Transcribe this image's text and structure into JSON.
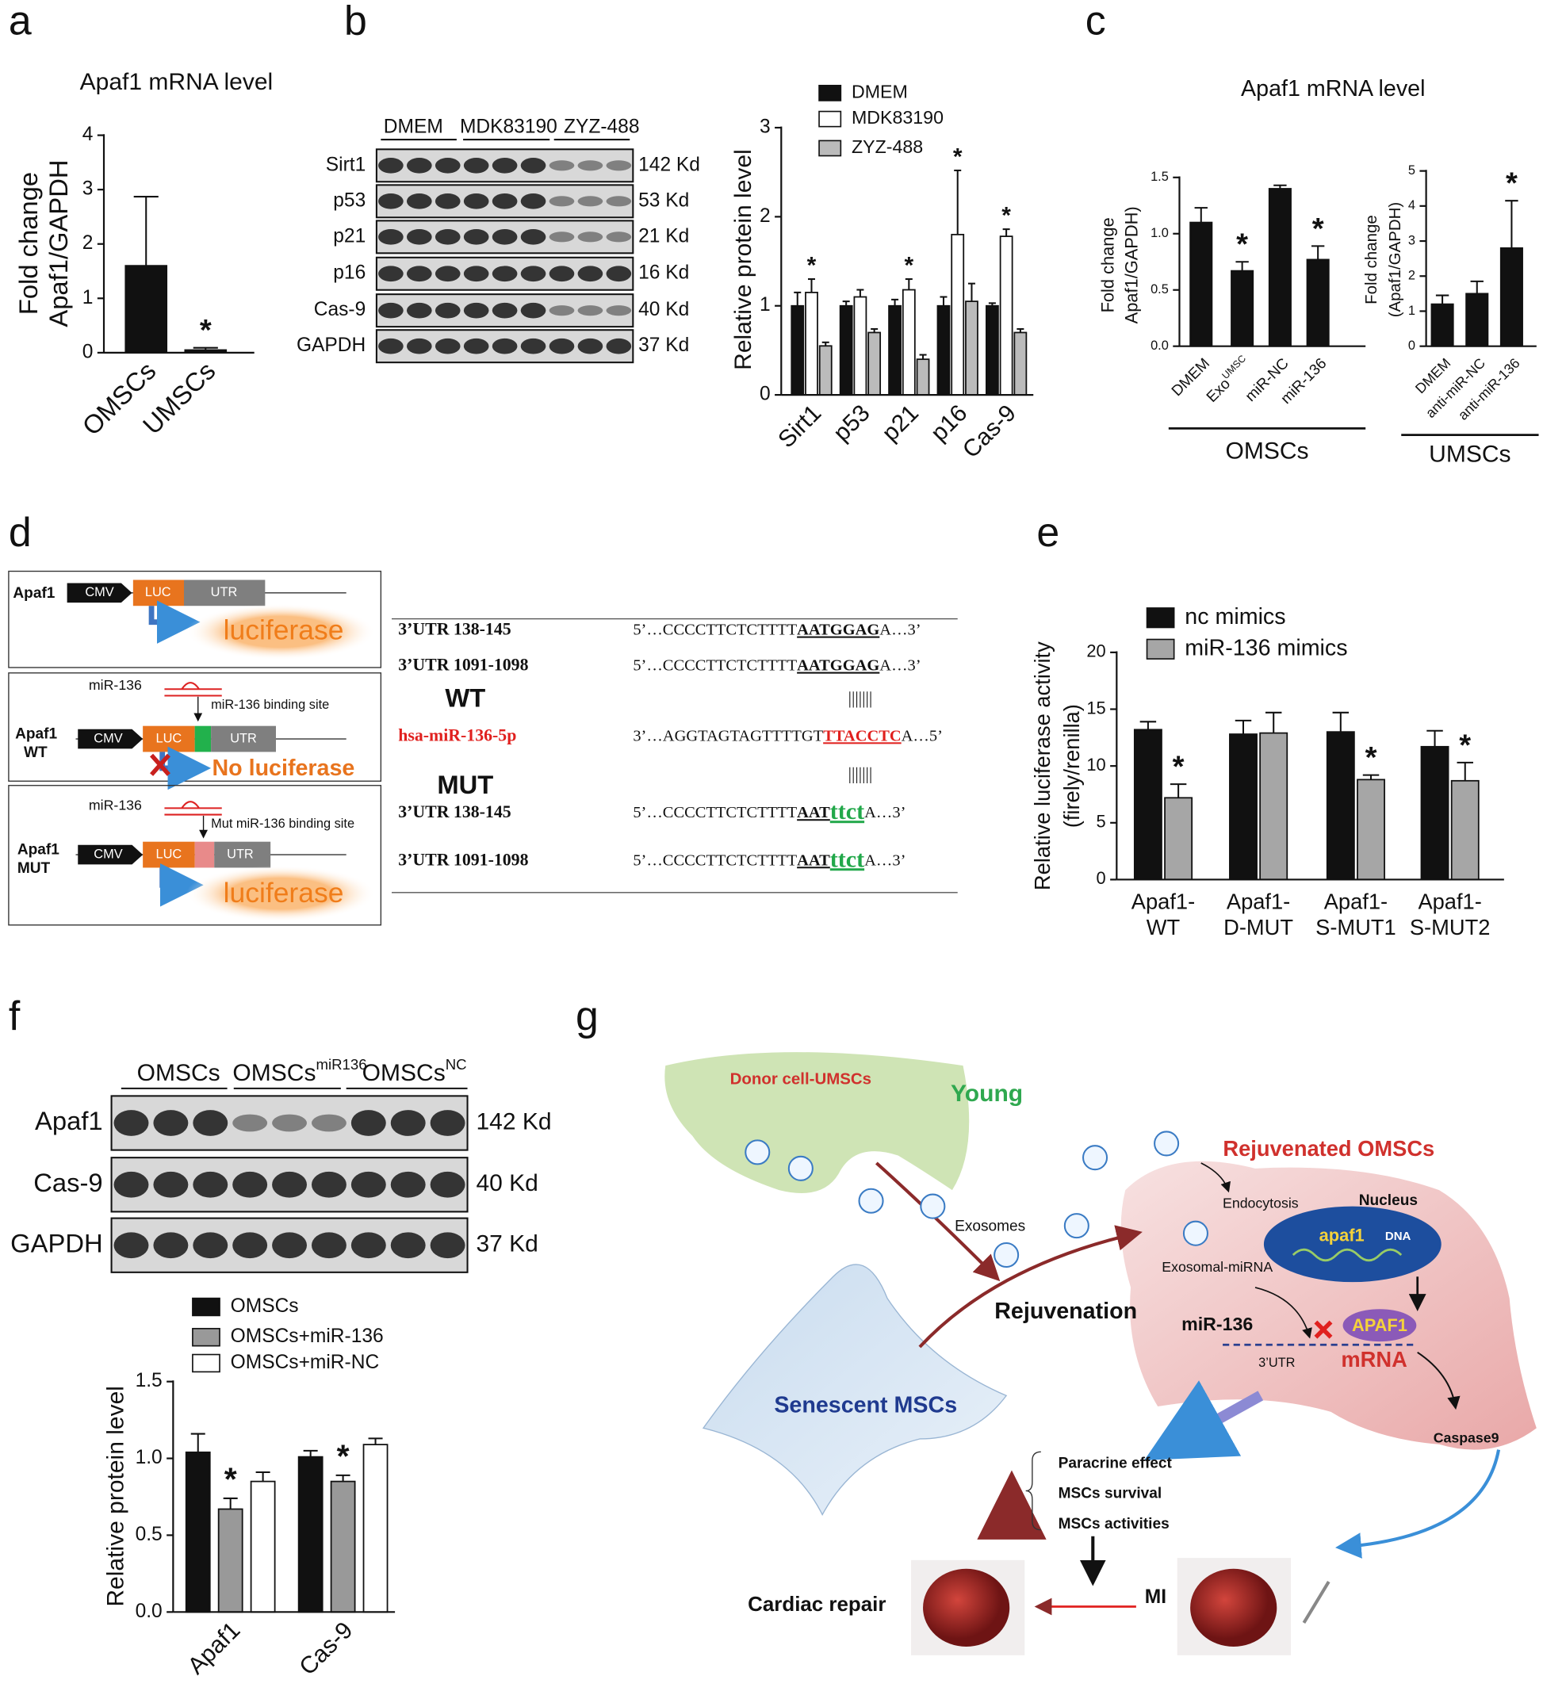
{
  "panel_labels": [
    "a",
    "b",
    "c",
    "d",
    "e",
    "f",
    "g"
  ],
  "chart_data": [
    {
      "type": "bar",
      "title": "Apaf1 mRNA  level",
      "ylabel": [
        "Fold change",
        "Apaf1/GAPDH"
      ],
      "categories": [
        "OMSCs",
        "UMSCs"
      ],
      "series": [
        {
          "color": "#111111",
          "values": [
            1.6,
            0.05
          ],
          "errors": [
            1.27,
            0.04
          ]
        }
      ],
      "ylim": [
        0,
        4
      ],
      "yticks": [
        0,
        1,
        2,
        3,
        4
      ],
      "annotations": [
        {
          "text": "*",
          "series": 0,
          "index": 1
        }
      ]
    },
    {
      "type": "bar",
      "ylabel": [
        "Relative protein level"
      ],
      "categories": [
        "Sirt1",
        "p53",
        "p21",
        "p16",
        "Cas-9"
      ],
      "series": [
        {
          "name": "DMEM",
          "color": "#111111",
          "values": [
            1.0,
            1.0,
            1.0,
            1.0,
            1.0
          ],
          "errors": [
            0.15,
            0.05,
            0.07,
            0.1,
            0.03
          ]
        },
        {
          "name": "MDK83190",
          "color": "#ffffff",
          "values": [
            1.15,
            1.1,
            1.18,
            1.8,
            1.78
          ],
          "errors": [
            0.15,
            0.08,
            0.12,
            0.72,
            0.08
          ]
        },
        {
          "name": "ZYZ-488",
          "color": "#bbbbbb",
          "values": [
            0.55,
            0.7,
            0.4,
            1.05,
            0.7
          ],
          "errors": [
            0.04,
            0.04,
            0.05,
            0.2,
            0.04
          ]
        }
      ],
      "ylim": [
        0,
        3
      ],
      "yticks": [
        0,
        1,
        2,
        3
      ],
      "annotations": [
        {
          "text": "*",
          "series": 1,
          "index": 0
        },
        {
          "text": "*",
          "series": 1,
          "index": 2
        },
        {
          "text": "*",
          "series": 1,
          "index": 3
        },
        {
          "text": "*",
          "series": 1,
          "index": 4
        }
      ]
    },
    {
      "type": "bar",
      "title": "Apaf1 mRNA level",
      "ylabel": [
        "Fold change",
        "Apaf1/GAPDH)"
      ],
      "categories": [
        "DMEM",
        {
          "text": "Exo",
          "sup": "UMSC"
        },
        "miR-NC",
        "miR-136"
      ],
      "series": [
        {
          "color": "#111111",
          "values": [
            1.1,
            0.67,
            1.4,
            0.77
          ],
          "errors": [
            0.13,
            0.08,
            0.03,
            0.12
          ]
        }
      ],
      "ylim": [
        0,
        1.5
      ],
      "yticks": [
        {
          "value": 0,
          "label": "0.0"
        },
        0.5,
        {
          "value": 1,
          "label": "1.0"
        },
        1.5
      ],
      "annotations": [
        {
          "text": "*",
          "series": 0,
          "index": 1
        },
        {
          "text": "*",
          "series": 0,
          "index": 3
        }
      ],
      "group_label": "OMSCs"
    },
    {
      "type": "bar",
      "ylabel": [
        "Fold change",
        "(Apaf1/GAPDH)"
      ],
      "categories": [
        "DMEM",
        "anti-miR-NC",
        "anti-miR-136"
      ],
      "series": [
        {
          "color": "#111111",
          "values": [
            1.2,
            1.5,
            2.8
          ],
          "errors": [
            0.25,
            0.35,
            1.35
          ]
        }
      ],
      "ylim": [
        0,
        5
      ],
      "yticks": [
        0,
        1,
        2,
        3,
        4,
        5
      ],
      "annotations": [
        {
          "text": "*",
          "series": 0,
          "index": 2
        }
      ],
      "group_label": "UMSCs"
    },
    {
      "type": "bar",
      "ylabel": [
        "Relative luciferase activity",
        "(firely/renilla)"
      ],
      "categories": [
        [
          "Apaf1-",
          "WT"
        ],
        [
          "Apaf1-",
          "D-MUT"
        ],
        [
          "Apaf1-",
          "S-MUT1"
        ],
        [
          "Apaf1-",
          "S-MUT2"
        ]
      ],
      "series": [
        {
          "name": "nc mimics",
          "color": "#111111",
          "values": [
            13.2,
            12.8,
            13.0,
            11.7
          ],
          "errors": [
            0.7,
            1.2,
            1.7,
            1.4
          ]
        },
        {
          "name": "miR-136 mimics",
          "color": "#a6a6a6",
          "values": [
            7.2,
            12.9,
            8.8,
            8.7
          ],
          "errors": [
            1.2,
            1.8,
            0.4,
            1.6
          ]
        }
      ],
      "ylim": [
        0,
        20
      ],
      "yticks": [
        0,
        5,
        10,
        15,
        20
      ],
      "annotations": [
        {
          "text": "*",
          "series": 1,
          "index": 0
        },
        {
          "text": "*",
          "series": 1,
          "index": 2
        },
        {
          "text": "*",
          "series": 1,
          "index": 3
        }
      ]
    },
    {
      "type": "bar",
      "ylabel": [
        "Relative protein level"
      ],
      "categories": [
        "Apaf1",
        "Cas-9"
      ],
      "series": [
        {
          "name": "OMSCs",
          "color": "#111111",
          "values": [
            1.04,
            1.01
          ],
          "errors": [
            0.12,
            0.04
          ]
        },
        {
          "name": "OMSCs+miR-136",
          "color": "#999999",
          "values": [
            0.67,
            0.85
          ],
          "errors": [
            0.07,
            0.04
          ]
        },
        {
          "name": "OMSCs+miR-NC",
          "color": "#ffffff",
          "values": [
            0.85,
            1.09
          ],
          "errors": [
            0.06,
            0.04
          ]
        }
      ],
      "ylim": [
        0,
        1.5
      ],
      "yticks": [
        {
          "value": 0,
          "label": "0.0"
        },
        0.5,
        {
          "value": 1,
          "label": "1.0"
        },
        1.5
      ],
      "annotations": [
        {
          "text": "*",
          "series": 1,
          "index": 0
        },
        {
          "text": "*",
          "series": 1,
          "index": 1
        }
      ]
    }
  ],
  "blots": [
    {
      "header": [
        "DMEM",
        "MDK83190",
        "ZYZ-488"
      ],
      "rows": [
        {
          "label": "Sirt1",
          "size": "142 Kd"
        },
        {
          "label": "p53",
          "size": "53 Kd"
        },
        {
          "label": "p21",
          "size": "21 Kd"
        },
        {
          "label": "p16",
          "size": "16 Kd"
        },
        {
          "label": "Cas-9",
          "size": "40 Kd"
        },
        {
          "label": "GAPDH",
          "size": "37 Kd"
        }
      ]
    },
    {
      "header": [
        "OMSCs",
        {
          "text": "OMSCs",
          "sup": "miR136"
        },
        {
          "text": "OMSCs",
          "sup": "NC"
        }
      ],
      "rows": [
        {
          "label": "Apaf1",
          "size": "142 Kd"
        },
        {
          "label": "Cas-9",
          "size": "40 Kd"
        },
        {
          "label": "GAPDH",
          "size": "37 Kd"
        }
      ]
    }
  ],
  "diagram_d": {
    "box1": {
      "gene": "Apaf1",
      "promoter": "CMV",
      "reporter": "LUC",
      "utr": "UTR",
      "output": "luciferase"
    },
    "box2": {
      "mirna": "miR-136",
      "site": "miR-136 binding site",
      "gene": "Apaf1",
      "variant": "WT",
      "promoter": "CMV",
      "reporter": "LUC",
      "utr": "UTR",
      "output": "No luciferase"
    },
    "box3": {
      "mirna": "miR-136",
      "site": "Mut miR-136 binding site",
      "gene": "Apaf1",
      "variant": "MUT",
      "promoter": "CMV",
      "reporter": "LUC",
      "utr": "UTR",
      "output": "luciferase"
    },
    "table": {
      "wt": "WT",
      "mut": "MUT",
      "pairs": [
        "|||||||",
        "|||||||"
      ],
      "rows": [
        {
          "label": "3’UTR 138-145",
          "seq": [
            "5’…CCCCTTCTCTTTT",
            "AATGGAG",
            "A…3’"
          ]
        },
        {
          "label": "3’UTR 1091-1098",
          "seq": [
            "5’…CCCCTTCTCTTTT",
            "AATGGAG",
            "A…3’"
          ]
        },
        {
          "label": "hsa-miR-136-5p",
          "seq": [
            "3’…AGGTAGTAGTTTTGT",
            "TTACCTC",
            "A…5’"
          ]
        },
        {
          "label": "3’UTR 138-145",
          "seq": [
            "5’…CCCCTTCTCTTTT",
            "AAT",
            "ttct",
            "A…3’"
          ]
        },
        {
          "label": "3’UTR 1091-1098",
          "seq": [
            "5’…CCCCTTCTCTTTT",
            "AAT",
            "ttct",
            "A…3’"
          ]
        }
      ]
    }
  },
  "diagram_g": {
    "donor": "Donor cell-UMSCs",
    "young": "Young",
    "exosomes": "Exosomes",
    "rejuvenation": "Rejuvenation",
    "senescent": "Senescent MSCs",
    "rejuvenated": "Rejuvenated OMSCs",
    "nucleus": "Nucleus",
    "endocytosis": "Endocytosis",
    "exosomal_mirna": "Exosomal-miRNA",
    "gene": "apaf1",
    "dna": "DNA",
    "mirna": "miR-136",
    "protein": "APAF1",
    "utr": "3’UTR",
    "mrna": "mRNA",
    "caspase": "Caspase9",
    "effects": [
      "Paracrine effect",
      "MSCs survival",
      "MSCs activities"
    ],
    "repair": "Cardiac repair",
    "mi": "MI"
  }
}
